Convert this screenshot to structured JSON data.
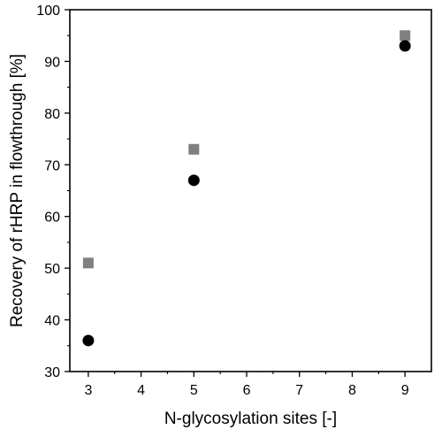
{
  "chart_data": {
    "type": "scatter",
    "title": "",
    "xlabel": "N-glycosylation sites [-]",
    "ylabel": "Recovery of rHRP in flowthrough [%]",
    "xlim": [
      2.65,
      9.5
    ],
    "ylim": [
      30,
      100
    ],
    "xticks": [
      3,
      4,
      5,
      6,
      7,
      8,
      9
    ],
    "yticks": [
      30,
      40,
      50,
      60,
      70,
      80,
      90,
      100
    ],
    "grid": false,
    "legend": "none",
    "series": [
      {
        "marker": "square",
        "color": "#808080",
        "x": [
          3,
          5,
          9
        ],
        "y": [
          51,
          73,
          95
        ]
      },
      {
        "marker": "circle",
        "color": "#000000",
        "x": [
          3,
          5,
          9
        ],
        "y": [
          36,
          67,
          93
        ]
      }
    ]
  }
}
